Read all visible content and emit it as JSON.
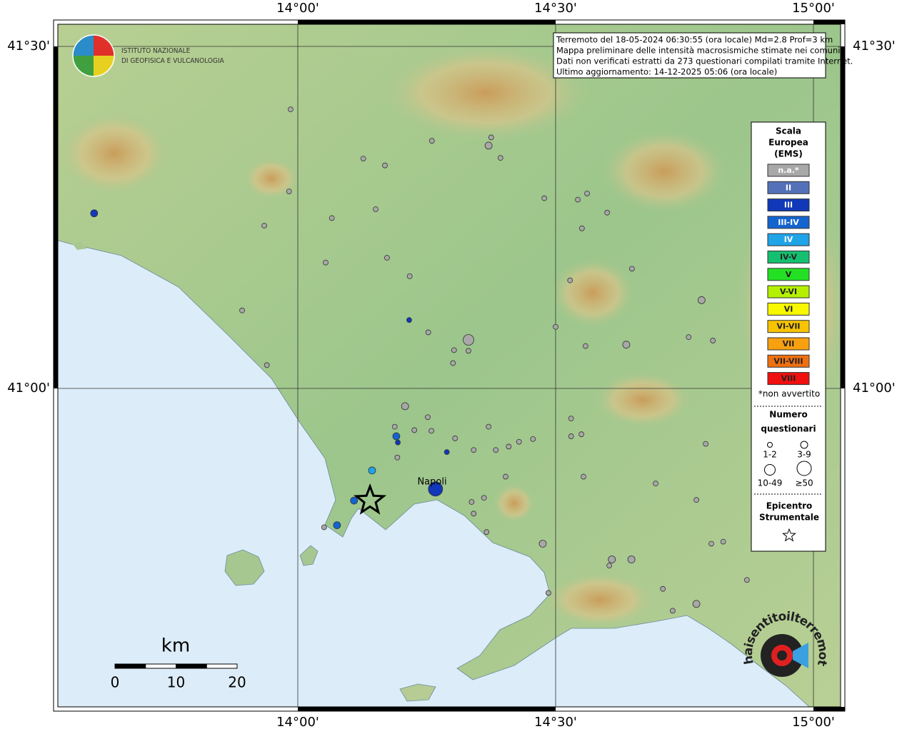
{
  "map": {
    "lon_ticks": [
      {
        "value": 14.0,
        "label": "14°00'"
      },
      {
        "value": 14.5,
        "label": "14°30'"
      },
      {
        "value": 15.0,
        "label": "15°00'"
      }
    ],
    "lat_ticks": [
      {
        "value": 41.5,
        "label": "41°30'"
      },
      {
        "value": 41.0,
        "label": "41°00'"
      }
    ],
    "city_label": "Napoli",
    "epicenter": [
      14.14,
      40.836
    ],
    "points": [
      [
        13.986,
        41.408,
        0,
        0
      ],
      [
        14.26,
        41.362,
        0,
        0
      ],
      [
        14.375,
        41.367,
        0,
        0
      ],
      [
        14.37,
        41.355,
        0,
        1
      ],
      [
        14.393,
        41.337,
        0,
        0
      ],
      [
        14.127,
        41.336,
        0,
        0
      ],
      [
        14.169,
        41.326,
        0,
        0
      ],
      [
        13.983,
        41.288,
        0,
        0
      ],
      [
        14.151,
        41.262,
        0,
        0
      ],
      [
        14.066,
        41.249,
        0,
        0
      ],
      [
        13.935,
        41.238,
        0,
        0
      ],
      [
        14.478,
        41.278,
        0,
        0
      ],
      [
        14.561,
        41.285,
        0,
        0
      ],
      [
        14.543,
        41.276,
        0,
        0
      ],
      [
        14.6,
        41.257,
        0,
        0
      ],
      [
        14.551,
        41.234,
        0,
        0
      ],
      [
        14.173,
        41.191,
        0,
        0
      ],
      [
        14.054,
        41.184,
        0,
        0
      ],
      [
        14.217,
        41.164,
        0,
        0
      ],
      [
        14.648,
        41.175,
        0,
        0
      ],
      [
        14.528,
        41.158,
        0,
        0
      ],
      [
        14.783,
        41.129,
        0,
        1
      ],
      [
        13.892,
        41.114,
        0,
        0
      ],
      [
        14.253,
        41.082,
        0,
        0
      ],
      [
        14.5,
        41.09,
        0,
        0
      ],
      [
        14.331,
        41.071,
        0,
        2
      ],
      [
        14.303,
        41.056,
        0,
        0
      ],
      [
        14.331,
        41.055,
        0,
        0
      ],
      [
        14.558,
        41.062,
        0,
        0
      ],
      [
        14.637,
        41.064,
        0,
        1
      ],
      [
        14.758,
        41.075,
        0,
        0
      ],
      [
        14.805,
        41.07,
        0,
        0
      ],
      [
        14.301,
        41.037,
        0,
        0
      ],
      [
        13.94,
        41.034,
        0,
        0
      ],
      [
        14.208,
        40.974,
        0,
        1
      ],
      [
        14.252,
        40.958,
        0,
        0
      ],
      [
        14.188,
        40.944,
        0,
        0
      ],
      [
        14.226,
        40.939,
        0,
        0
      ],
      [
        14.259,
        40.938,
        0,
        0
      ],
      [
        14.37,
        40.944,
        0,
        0
      ],
      [
        14.53,
        40.956,
        0,
        0
      ],
      [
        14.305,
        40.927,
        0,
        0
      ],
      [
        14.55,
        40.933,
        0,
        0
      ],
      [
        14.456,
        40.926,
        0,
        0
      ],
      [
        14.53,
        40.93,
        0,
        0
      ],
      [
        14.429,
        40.922,
        0,
        0
      ],
      [
        14.409,
        40.915,
        0,
        0
      ],
      [
        14.384,
        40.91,
        0,
        0
      ],
      [
        14.341,
        40.91,
        0,
        0
      ],
      [
        14.791,
        40.919,
        0,
        0
      ],
      [
        14.193,
        40.899,
        0,
        0
      ],
      [
        14.403,
        40.871,
        0,
        0
      ],
      [
        14.554,
        40.871,
        0,
        0
      ],
      [
        14.694,
        40.861,
        0,
        0
      ],
      [
        14.337,
        40.834,
        0,
        0
      ],
      [
        14.361,
        40.84,
        0,
        0
      ],
      [
        14.341,
        40.817,
        0,
        0
      ],
      [
        14.366,
        40.79,
        0,
        0
      ],
      [
        14.773,
        40.837,
        0,
        0
      ],
      [
        14.475,
        40.773,
        0,
        1
      ],
      [
        14.802,
        40.773,
        0,
        0
      ],
      [
        14.825,
        40.776,
        0,
        0
      ],
      [
        14.609,
        40.75,
        0,
        1
      ],
      [
        14.647,
        40.75,
        0,
        1
      ],
      [
        14.604,
        40.741,
        0,
        0
      ],
      [
        14.871,
        40.72,
        0,
        0
      ],
      [
        14.708,
        40.707,
        0,
        0
      ],
      [
        14.486,
        40.701,
        0,
        0
      ],
      [
        14.773,
        40.685,
        0,
        1
      ],
      [
        14.727,
        40.675,
        0,
        0
      ],
      [
        14.051,
        40.797,
        0,
        0
      ],
      [
        13.605,
        41.256,
        2,
        1
      ],
      [
        14.216,
        41.1,
        2,
        0
      ],
      [
        14.191,
        40.93,
        3,
        1
      ],
      [
        14.194,
        40.921,
        2,
        0
      ],
      [
        14.289,
        40.907,
        2,
        0
      ],
      [
        14.144,
        40.88,
        4,
        1
      ],
      [
        14.267,
        40.853,
        2,
        3
      ],
      [
        14.109,
        40.836,
        3,
        1
      ],
      [
        14.076,
        40.8,
        3,
        1
      ]
    ]
  },
  "logo": {
    "line1": "ISTITUTO NAZIONALE",
    "line2": "DI GEOFISICA E VULCANOLOGIA"
  },
  "info": {
    "lines": [
      "Terremoto del 18-05-2024 06:30:55 (ora locale) Md=2.8 Prof=3 km",
      "Mappa preliminare delle intensità macrosismiche stimate nei comuni",
      "Dati non verificati estratti da 273 questionari compilati tramite Internet.",
      "Ultimo aggiornamento: 14-12-2025 05:06 (ora locale)"
    ]
  },
  "legend": {
    "title": [
      "Scala",
      "Europea",
      "(EMS)"
    ],
    "classes": [
      {
        "label": "n.a.*",
        "color": "#a8a8a8"
      },
      {
        "label": "II",
        "color": "#5470b8"
      },
      {
        "label": "III",
        "color": "#1038b8"
      },
      {
        "label": "III-IV",
        "color": "#1464d0"
      },
      {
        "label": "IV",
        "color": "#20a4e8"
      },
      {
        "label": "IV-V",
        "color": "#14c070"
      },
      {
        "label": "V",
        "color": "#24e024"
      },
      {
        "label": "V-VI",
        "color": "#b4f000"
      },
      {
        "label": "VI",
        "color": "#f8f800"
      },
      {
        "label": "VI-VII",
        "color": "#f8c400"
      },
      {
        "label": "VII",
        "color": "#f8a010"
      },
      {
        "label": "VII-VIII",
        "color": "#f07010"
      },
      {
        "label": "VIII",
        "color": "#f01010"
      }
    ],
    "note": "*non avvertito",
    "size_title": [
      "Numero",
      "questionari"
    ],
    "sizes": [
      "1-2",
      "3-9",
      "10-49",
      "≥50"
    ],
    "epicenter_title": [
      "Epicentro",
      "Strumentale"
    ]
  },
  "scale_bar": {
    "unit": "km",
    "ticks": [
      0,
      10,
      20
    ]
  },
  "watermark": "haisentitoilterremoto.it"
}
